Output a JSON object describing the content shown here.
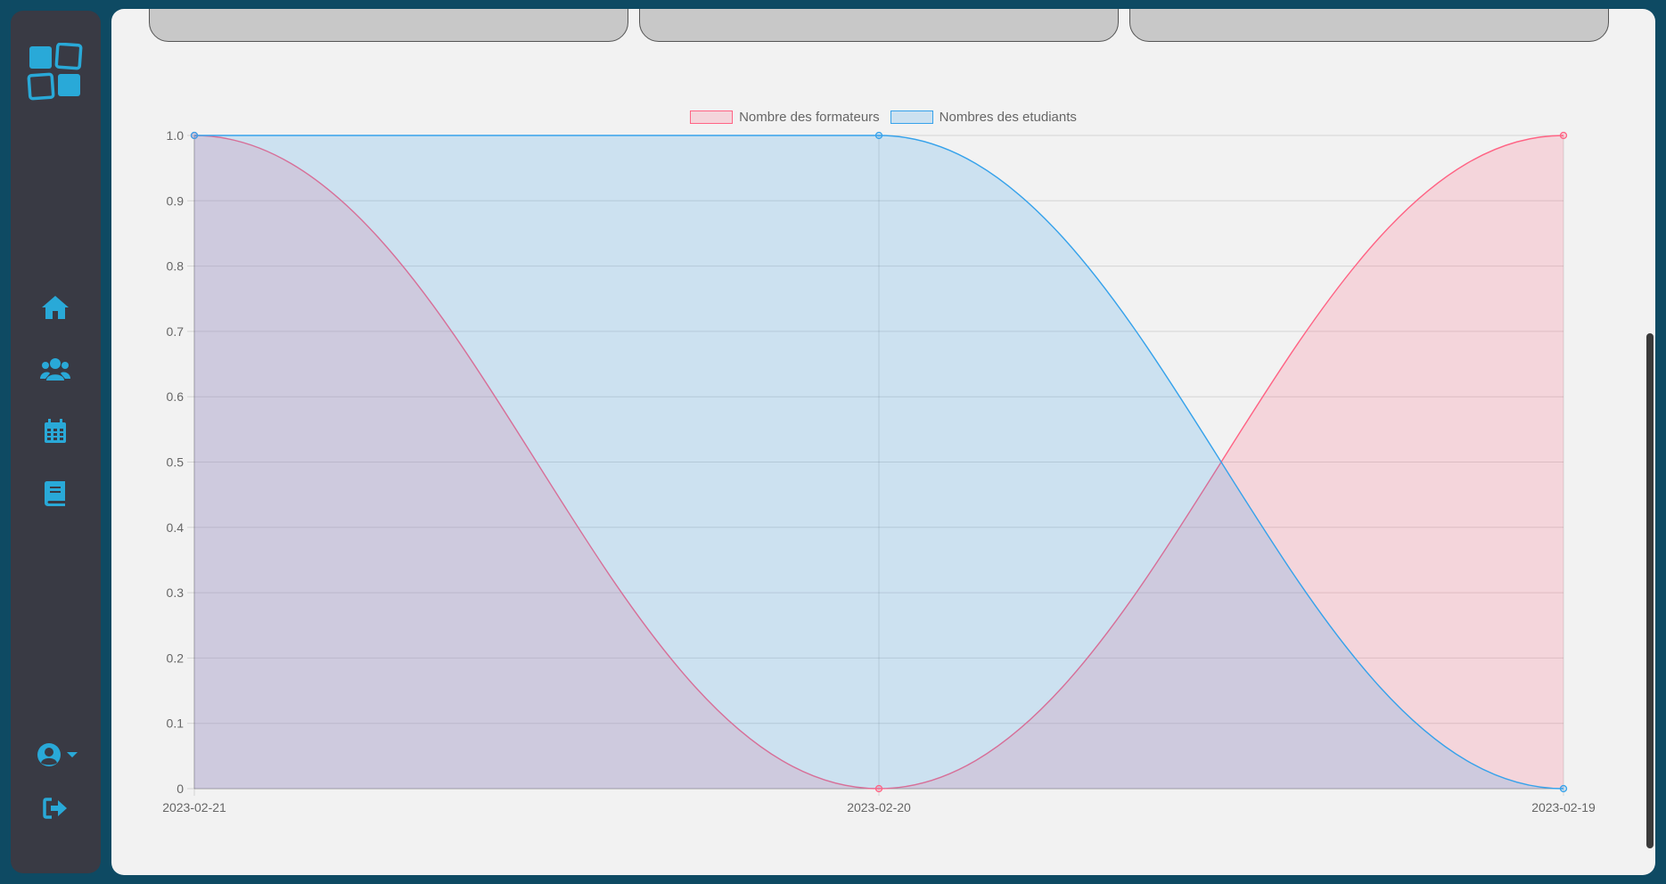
{
  "nav": {
    "items": [
      {
        "name": "home",
        "icon": "home-icon"
      },
      {
        "name": "users",
        "icon": "users-icon"
      },
      {
        "name": "calendar",
        "icon": "calendar-icon"
      },
      {
        "name": "book",
        "icon": "book-icon"
      },
      {
        "name": "account",
        "icon": "user-circle-icon"
      },
      {
        "name": "logout",
        "icon": "sign-out-icon"
      }
    ],
    "accent": "#29a9d8"
  },
  "chart_data": {
    "type": "area",
    "categories": [
      "2023-02-21",
      "2023-02-20",
      "2023-02-19"
    ],
    "series": [
      {
        "name": "Nombre des formateurs",
        "values": [
          1,
          0,
          1
        ],
        "color": "#ff6384",
        "fill": "rgba(255,99,132,0.2)"
      },
      {
        "name": "Nombres des etudiants",
        "values": [
          1,
          1,
          0
        ],
        "color": "#36a2eb",
        "fill": "rgba(54,162,235,0.2)"
      }
    ],
    "y_ticks": [
      "0",
      "0.1",
      "0.2",
      "0.3",
      "0.4",
      "0.5",
      "0.6",
      "0.7",
      "0.8",
      "0.9",
      "1.0"
    ],
    "ylim": [
      0,
      1
    ],
    "grid": true,
    "legend": "top-center",
    "curve": "smooth"
  }
}
